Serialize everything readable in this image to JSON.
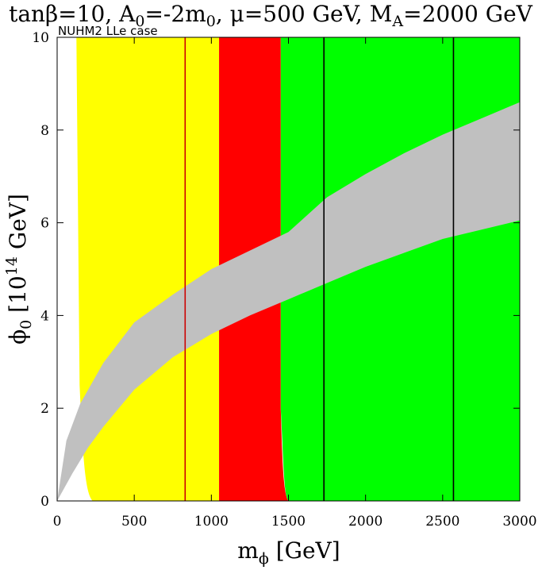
{
  "chart_data": {
    "type": "area",
    "title": {
      "text1": "tanβ=10, A",
      "sub1": "0",
      "text2": "=-2m",
      "sub2": "0",
      "text3": ", μ=500 GeV, M",
      "sub3": "A",
      "text4": "=2000 GeV"
    },
    "subtitle": "NUHM2 LLe case",
    "xlabel": {
      "main": "m",
      "sub": "ϕ",
      "rest": " [GeV]"
    },
    "ylabel": {
      "main": "ϕ",
      "sub": "0",
      "rest1": " [10",
      "sup": "14",
      "rest2": " GeV]"
    },
    "xlim": [
      0,
      3000
    ],
    "ylim": [
      0,
      10
    ],
    "xticks": [
      0,
      500,
      1000,
      1500,
      2000,
      2500,
      3000
    ],
    "yticks": [
      0,
      2,
      4,
      6,
      8,
      10
    ],
    "xtick_labels": [
      "0",
      "500",
      "1000",
      "1500",
      "2000",
      "2500",
      "3000"
    ],
    "ytick_labels": [
      "0",
      "2",
      "4",
      "6",
      "8",
      "10"
    ],
    "colors": {
      "yellow": "#ffff00",
      "red": "#ff0000",
      "green": "#00ff00",
      "gray": "#c0c0c0",
      "line_red": "#cc0000",
      "line_black": "#000000"
    },
    "regions": [
      {
        "name": "yellow",
        "x_from": 125,
        "x_to": 1050,
        "lower_boundary_x_at_y0": 230
      },
      {
        "name": "red",
        "x_from": 1050,
        "x_to": 1450,
        "lower_boundary_x_at_y0": 1500
      },
      {
        "name": "green",
        "x_from": 1450,
        "x_to": 3000
      }
    ],
    "band": {
      "name": "gray",
      "upper": [
        [
          0,
          0
        ],
        [
          60,
          1.3
        ],
        [
          150,
          2.1
        ],
        [
          300,
          2.98
        ],
        [
          500,
          3.85
        ],
        [
          750,
          4.45
        ],
        [
          1000,
          5.0
        ],
        [
          1250,
          5.4
        ],
        [
          1500,
          5.8
        ],
        [
          1750,
          6.55
        ],
        [
          2000,
          7.05
        ],
        [
          2250,
          7.5
        ],
        [
          2500,
          7.9
        ],
        [
          2750,
          8.25
        ],
        [
          3000,
          8.6
        ]
      ],
      "lower": [
        [
          0,
          0
        ],
        [
          100,
          0.6
        ],
        [
          200,
          1.15
        ],
        [
          300,
          1.6
        ],
        [
          500,
          2.4
        ],
        [
          750,
          3.1
        ],
        [
          1000,
          3.6
        ],
        [
          1250,
          4.0
        ],
        [
          1500,
          4.35
        ],
        [
          1750,
          4.7
        ],
        [
          2000,
          5.05
        ],
        [
          2250,
          5.35
        ],
        [
          2500,
          5.65
        ],
        [
          2750,
          5.85
        ],
        [
          3000,
          6.05
        ]
      ]
    },
    "vertical_lines": [
      {
        "x": 830,
        "color": "line_red"
      },
      {
        "x": 1730,
        "color": "line_black"
      },
      {
        "x": 2570,
        "color": "line_black"
      }
    ]
  }
}
